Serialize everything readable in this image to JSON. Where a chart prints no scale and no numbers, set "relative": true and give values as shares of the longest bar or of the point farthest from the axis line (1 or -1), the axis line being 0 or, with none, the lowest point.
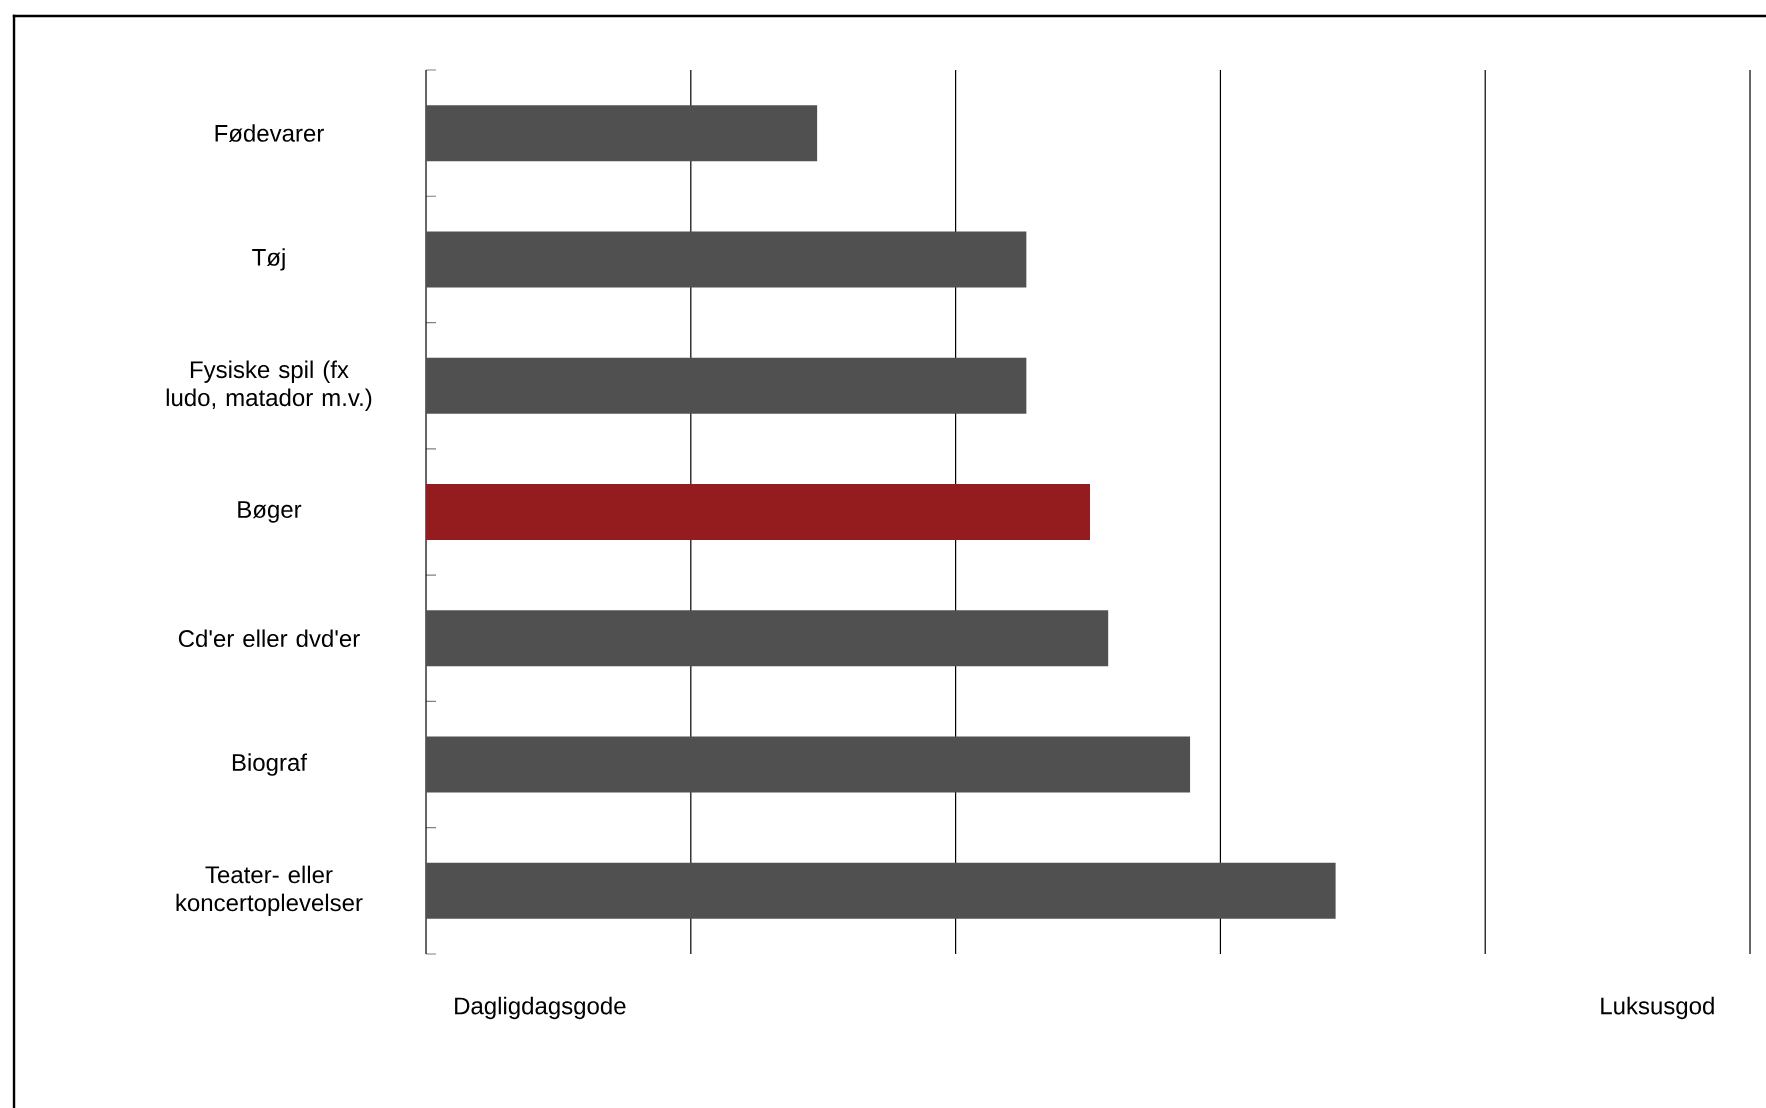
{
  "chart_data": {
    "type": "bar",
    "orientation": "horizontal",
    "relative": true,
    "grid": "x",
    "categories": [
      "Fødevarer",
      "Tøj",
      "Fysiske spil (fx ludo, matador m.v.)",
      "Bøger",
      "Cd'er eller dvd'er",
      "Biograf",
      "Teater- eller koncertoplevelser"
    ],
    "values": [
      0.43,
      0.66,
      0.66,
      0.73,
      0.75,
      0.84,
      1
    ],
    "colors": [
      "#505050",
      "#505050",
      "#505050",
      "#941c1f",
      "#505050",
      "#505050",
      "#505050"
    ],
    "annotations": [
      "Dagligdagsgode",
      "Luksusgod"
    ]
  }
}
